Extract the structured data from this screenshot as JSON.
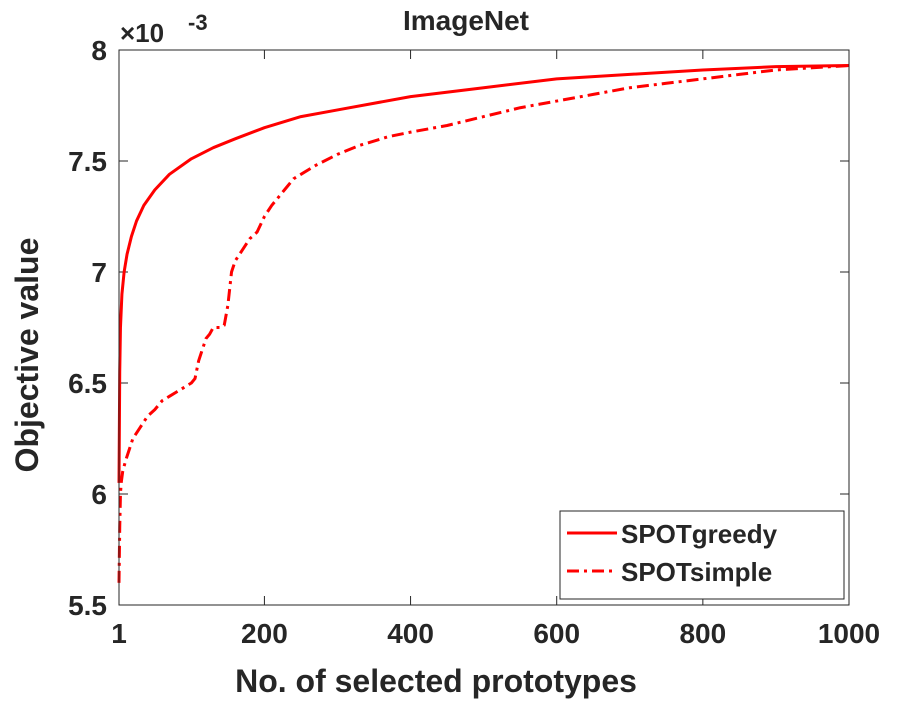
{
  "chart_data": {
    "type": "line",
    "title": "ImageNet",
    "xlabel": "No. of selected prototypes",
    "ylabel": "Objective value",
    "xlim": [
      1,
      1000
    ],
    "ylim": [
      5.5,
      8
    ],
    "y_scale_exponent_label": "×10",
    "y_scale_exponent_power": "-3",
    "x_ticks": [
      1,
      200,
      400,
      600,
      800,
      1000
    ],
    "x_tick_labels": [
      "1",
      "200",
      "400",
      "600",
      "800",
      "1000"
    ],
    "y_ticks": [
      5.5,
      6,
      6.5,
      7,
      7.5,
      8
    ],
    "y_tick_labels": [
      "5.5",
      "6",
      "6.5",
      "7",
      "7.5",
      "8"
    ],
    "grid": false,
    "legend_position": "bottom-right",
    "series": [
      {
        "name": "SPOTgreedy",
        "color": "#ff0000",
        "line_style": "solid",
        "x": [
          1,
          2,
          3,
          5,
          8,
          12,
          18,
          25,
          35,
          50,
          70,
          100,
          130,
          160,
          200,
          250,
          300,
          400,
          500,
          600,
          700,
          800,
          900,
          1000
        ],
        "y": [
          6.05,
          6.55,
          6.75,
          6.9,
          7.0,
          7.08,
          7.16,
          7.23,
          7.3,
          7.37,
          7.44,
          7.51,
          7.56,
          7.6,
          7.65,
          7.7,
          7.73,
          7.79,
          7.83,
          7.87,
          7.89,
          7.91,
          7.925,
          7.93
        ]
      },
      {
        "name": "SPOTsimple",
        "color": "#ff0000",
        "line_style": "dashdot",
        "x": [
          1,
          2,
          3,
          4,
          6,
          10,
          15,
          20,
          30,
          40,
          50,
          60,
          70,
          80,
          90,
          100,
          105,
          110,
          115,
          120,
          125,
          130,
          140,
          145,
          150,
          155,
          160,
          170,
          180,
          190,
          200,
          210,
          220,
          230,
          240,
          250,
          270,
          300,
          330,
          370,
          400,
          450,
          500,
          550,
          600,
          650,
          700,
          750,
          800,
          850,
          900,
          950,
          1000
        ],
        "y": [
          5.6,
          5.85,
          6.0,
          6.05,
          6.1,
          6.15,
          6.2,
          6.25,
          6.3,
          6.35,
          6.38,
          6.42,
          6.44,
          6.46,
          6.48,
          6.5,
          6.52,
          6.6,
          6.65,
          6.7,
          6.72,
          6.75,
          6.75,
          6.76,
          6.85,
          7.0,
          7.05,
          7.1,
          7.15,
          7.18,
          7.25,
          7.3,
          7.34,
          7.38,
          7.42,
          7.44,
          7.48,
          7.53,
          7.57,
          7.61,
          7.63,
          7.66,
          7.7,
          7.74,
          7.77,
          7.8,
          7.83,
          7.85,
          7.87,
          7.89,
          7.91,
          7.92,
          7.93
        ]
      }
    ]
  }
}
